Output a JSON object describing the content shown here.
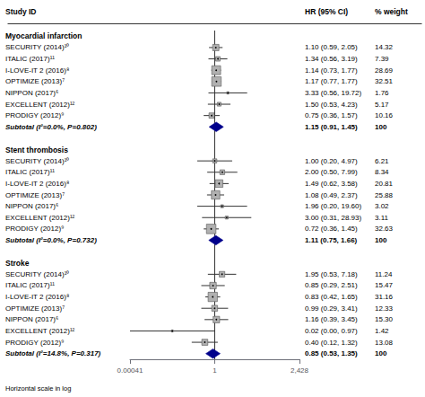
{
  "chart_data": {
    "type": "forest",
    "column_headers": [
      "Study ID",
      "HR (95% CI)",
      "% weight"
    ],
    "log": "x",
    "xlim": [
      0.00041,
      2428
    ],
    "xticks": [
      0.00041,
      1,
      {
        "value": 2428,
        "label": "2,428"
      }
    ],
    "reference_line": 1,
    "grid": false,
    "color": "#b0b0b0",
    "footnote": "Horizontal scale in log",
    "sections": [
      {
        "header": "Myocardial infarction",
        "categories": [
          "SECURITY (2014)¹⁰",
          "ITALIC (2017)¹¹",
          "I-LOVE-IT 2 (2016)⁸",
          "OPTIMIZE (2013)⁷",
          "NIPPON (2017)⁶",
          "EXCELLENT (2012)¹²",
          "PRODIGY (2012)⁹"
        ],
        "values": [
          1.1,
          1.34,
          1.14,
          1.17,
          3.33,
          1.5,
          0.75
        ],
        "lower": [
          0.59,
          0.56,
          0.73,
          0.77,
          0.56,
          0.53,
          0.36
        ],
        "upper": [
          2.05,
          3.19,
          1.77,
          1.77,
          19.72,
          4.23,
          1.57
        ],
        "value_labels": [
          "1.10 (0.59, 2.05)",
          "1.34 (0.56, 3.19)",
          "1.14 (0.73, 1.77)",
          "1.17 (0.77, 1.77)",
          "3.33 (0.56, 19.72)",
          "1.50 (0.53, 4.23)",
          "0.75 (0.36, 1.57)"
        ],
        "weights": [
          14.32,
          7.39,
          28.69,
          32.51,
          1.76,
          5.17,
          10.16
        ],
        "weight_labels": [
          "14.32",
          "7.39",
          "28.69",
          "32.51",
          "1.76",
          "5.17",
          "10.16"
        ],
        "subtotal": {
          "label": "Subtotal (I²=0.0%, P=0.802)",
          "value": 1.15,
          "lower": 0.91,
          "upper": 1.45,
          "value_label": "1.15 (0.91, 1.45)",
          "weight": 100,
          "color": "#00008b"
        }
      },
      {
        "header": "Stent thrombosis",
        "categories": [
          "SECURITY (2014)¹⁰",
          "ITALIC (2017)¹¹",
          "I-LOVE-IT 2 (2016)⁸",
          "OPTIMIZE (2013)⁷",
          "NIPPON (2017)⁶",
          "EXCELLENT (2012)¹²",
          "PRODIGY (2012)⁹"
        ],
        "values": [
          1.0,
          2.0,
          1.49,
          1.08,
          1.96,
          3.0,
          0.72
        ],
        "lower": [
          0.2,
          0.5,
          0.62,
          0.49,
          0.2,
          0.31,
          0.36
        ],
        "upper": [
          4.97,
          7.99,
          3.58,
          2.37,
          19.6,
          28.93,
          1.45
        ],
        "value_labels": [
          "1.00 (0.20, 4.97)",
          "2.00 (0.50, 7.99)",
          "1.49 (0.62, 3.58)",
          "1.08 (0.49, 2.37)",
          "1.96 (0.20, 19.60)",
          "3.00 (0.31, 28.93)",
          "0.72 (0.36, 1.45)"
        ],
        "weights": [
          6.21,
          8.34,
          20.81,
          25.88,
          3.02,
          3.11,
          32.63
        ],
        "weight_labels": [
          "6.21",
          "8.34",
          "20.81",
          "25.88",
          "3.02",
          "3.11",
          "32.63"
        ],
        "subtotal": {
          "label": "Subtotal (I²=0.0%, P=0.732)",
          "value": 1.11,
          "lower": 0.75,
          "upper": 1.66,
          "value_label": "1.11 (0.75, 1.66)",
          "weight": 100,
          "color": "#00008b"
        }
      },
      {
        "header": "Stroke",
        "categories": [
          "SECURITY (2014)¹⁰",
          "ITALIC (2017)¹¹",
          "I-LOVE-IT 2 (2016)⁸",
          "OPTIMIZE (2013)⁷",
          "NIPPON (2017)⁶",
          "EXCELLENT (2012)¹²",
          "PRODIGY (2012)⁹"
        ],
        "values": [
          1.95,
          0.85,
          0.83,
          0.99,
          1.16,
          0.02,
          0.4
        ],
        "lower": [
          0.53,
          0.29,
          0.42,
          0.29,
          0.39,
          0.00041,
          0.12
        ],
        "upper": [
          7.18,
          2.51,
          1.65,
          3.41,
          3.45,
          0.97,
          1.32
        ],
        "value_labels": [
          "1.95 (0.53, 7.18)",
          "0.85 (0.29, 2.51)",
          "0.83 (0.42, 1.65)",
          "0.99 (0.29, 3.41)",
          "1.16 (0.39, 3.45)",
          "0.02 (0.00, 0.97)",
          "0.40 (0.12, 1.32)"
        ],
        "weights": [
          11.24,
          15.47,
          31.16,
          12.33,
          15.3,
          1.42,
          13.08
        ],
        "weight_labels": [
          "11.24",
          "15.47",
          "31.16",
          "12.33",
          "15.30",
          "1.42",
          "13.08"
        ],
        "subtotal": {
          "label": "Subtotal (I²=14.8%, P=0.317)",
          "value": 0.85,
          "lower": 0.53,
          "upper": 1.35,
          "value_label": "0.85 (0.53, 1.35)",
          "weight": 100,
          "color": "#00008b"
        }
      }
    ]
  }
}
